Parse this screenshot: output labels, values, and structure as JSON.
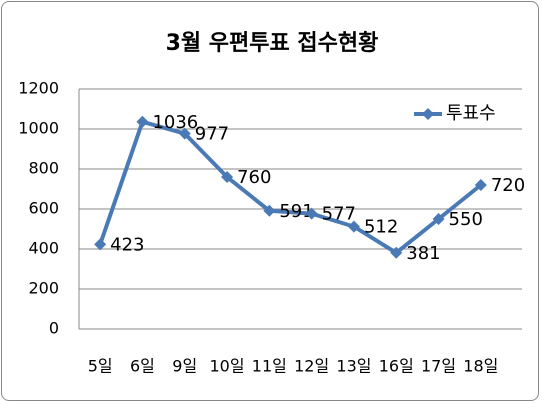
{
  "chart_data": {
    "type": "line",
    "title": "3월 우편투표 접수현황",
    "categories": [
      "5일",
      "6일",
      "9일",
      "10일",
      "11일",
      "12일",
      "13일",
      "16일",
      "17일",
      "18일"
    ],
    "series": [
      {
        "name": "투표수",
        "color": "#4a7ab5",
        "values": [
          423,
          1036,
          977,
          760,
          591,
          577,
          512,
          381,
          550,
          720
        ]
      }
    ],
    "ylim": [
      0,
      1200
    ],
    "yticks": [
      0,
      200,
      400,
      600,
      800,
      1000,
      1200
    ],
    "grid": true,
    "legend": "top-right"
  }
}
